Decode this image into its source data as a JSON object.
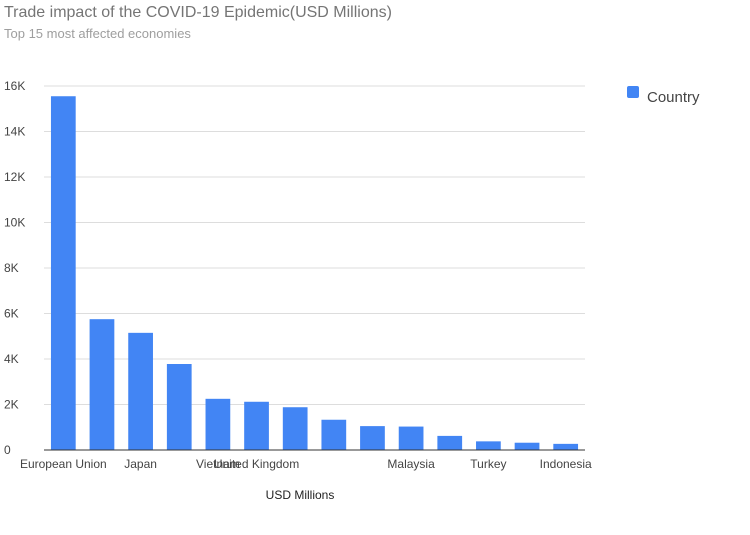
{
  "chart_data": {
    "type": "bar",
    "title": "Trade impact of the COVID-19 Epidemic(USD Millions)",
    "subtitle": "Top 15 most affected economies",
    "xlabel": "USD Millions",
    "ylabel": "",
    "ylim": [
      0,
      16000
    ],
    "yticks": [
      0,
      2000,
      4000,
      6000,
      8000,
      10000,
      12000,
      14000,
      16000
    ],
    "ytick_labels": [
      "0",
      "2K",
      "4K",
      "6K",
      "8K",
      "10K",
      "12K",
      "14K",
      "16K"
    ],
    "grid": true,
    "legend": {
      "position": "right",
      "entries": [
        "Country"
      ]
    },
    "categories": [
      "European Union",
      "",
      "Japan",
      "",
      "Vietnam",
      "United Kingdom",
      "",
      "",
      "",
      "Malaysia",
      "",
      "Turkey",
      "",
      "Indonesia"
    ],
    "series": [
      {
        "name": "Country",
        "color": "#4285f4",
        "values": [
          15550,
          5750,
          5150,
          3780,
          2250,
          2120,
          1880,
          1330,
          1050,
          1030,
          620,
          380,
          320,
          270
        ]
      }
    ]
  }
}
